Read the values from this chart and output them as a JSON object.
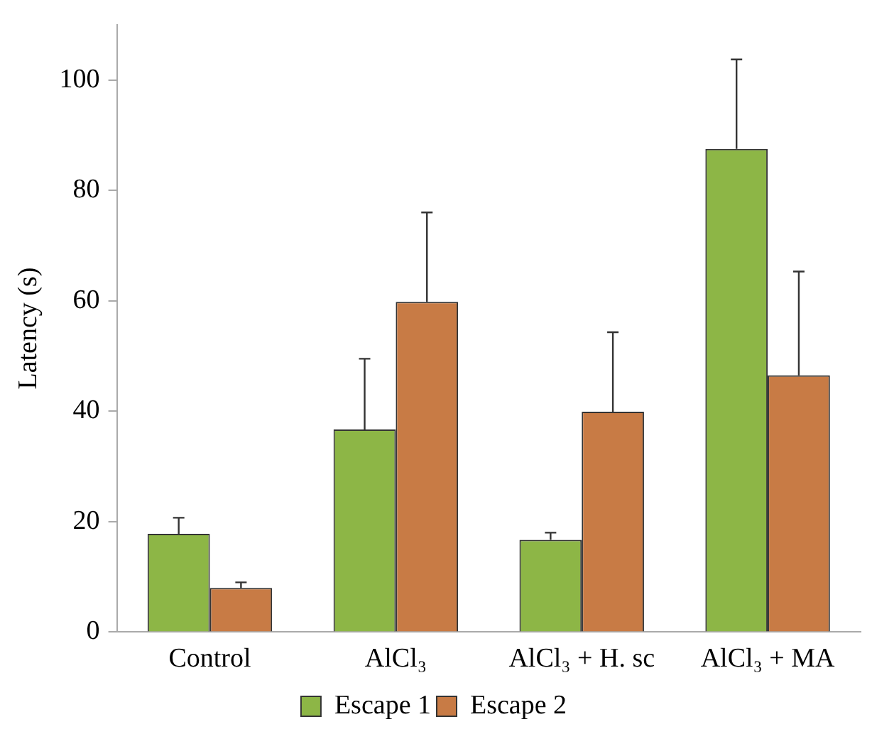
{
  "chart_data": {
    "type": "bar",
    "ylabel": "Latency (s)",
    "categories": [
      "Control",
      "AlCl₃",
      "AlCl₃ + H. sc",
      "AlCl₃ + MA"
    ],
    "series": [
      {
        "name": "Escape 1",
        "color": "#8db646",
        "values": [
          17.8,
          36.7,
          16.7,
          87.5
        ],
        "errors": [
          [
            17.8,
            20.7
          ],
          [
            36.7,
            49.5
          ],
          [
            16.7,
            18
          ],
          [
            87.5,
            103.7
          ]
        ]
      },
      {
        "name": "Escape 2",
        "color": "#c87b45",
        "values": [
          8,
          59.8,
          39.9,
          46.5
        ],
        "errors": [
          [
            8,
            9
          ],
          [
            59.8,
            76
          ],
          [
            39.9,
            54.3
          ],
          [
            46.5,
            65.3
          ]
        ]
      }
    ],
    "ylim": [
      0,
      110
    ],
    "yticks": [
      0,
      20,
      40,
      60,
      80,
      100
    ],
    "grid": false,
    "legend": "bottom"
  }
}
